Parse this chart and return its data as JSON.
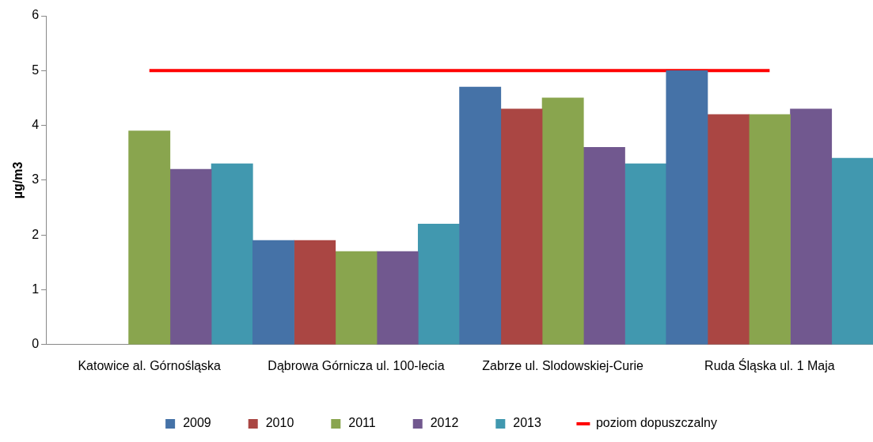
{
  "chart_data": {
    "type": "bar",
    "ylabel": "µg/m3",
    "categories": [
      "Katowice al. Górnośląska",
      "Dąbrowa Górnicza ul. 100-lecia",
      "Zabrze ul. Slodowskiej-Curie",
      "Ruda Śląska ul. 1 Maja"
    ],
    "series": [
      {
        "name": "2009",
        "color": "#4572a7",
        "values": [
          null,
          1.9,
          4.7,
          5.0
        ]
      },
      {
        "name": "2010",
        "color": "#aa4643",
        "values": [
          null,
          1.9,
          4.3,
          4.2
        ]
      },
      {
        "name": "2011",
        "color": "#89a54e",
        "values": [
          3.9,
          1.7,
          4.5,
          4.2
        ]
      },
      {
        "name": "2012",
        "color": "#71588f",
        "values": [
          3.2,
          1.7,
          3.6,
          4.3
        ]
      },
      {
        "name": "2013",
        "color": "#4198af",
        "values": [
          3.3,
          2.2,
          3.3,
          3.4
        ]
      },
      {
        "name": "poziom dopuszczalny",
        "type": "line",
        "color": "#ff0000",
        "values": [
          5,
          5,
          5,
          5
        ],
        "marker": "none"
      }
    ],
    "ylim": [
      0,
      6
    ],
    "yticks": [
      0,
      1,
      2,
      3,
      4,
      5,
      6
    ],
    "grid": false,
    "legend": "bottom"
  }
}
